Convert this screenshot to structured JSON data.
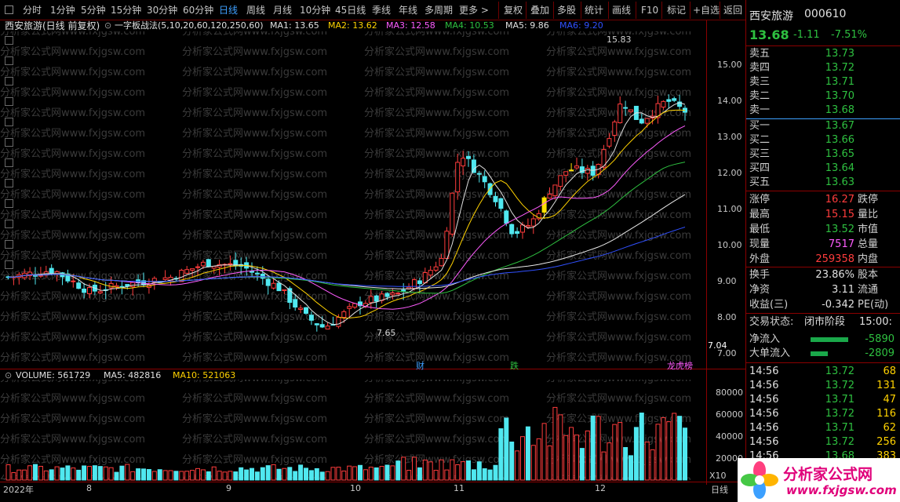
{
  "toolbar": {
    "periods": [
      "分时",
      "1分钟",
      "5分钟",
      "15分钟",
      "30分钟",
      "60分钟",
      "日线",
      "周线",
      "月线",
      "10分钟",
      "45日线",
      "季线",
      "年线",
      "多周期",
      "更多 >"
    ],
    "active_period": "日线",
    "tools": [
      "复权",
      "叠加",
      "多股",
      "统计",
      "画线",
      "F10",
      "标记",
      "+自选",
      "返回"
    ]
  },
  "chart_header": {
    "title": "西安旅游(日线 前复权)",
    "formula": "一字板战法(5,10,20,60,120,250,60)",
    "ma1": "MA1: 13.65",
    "ma2": "MA2: 13.62",
    "ma3": "MA3: 12.58",
    "ma4": "MA4: 10.53",
    "ma5": "MA5: 9.86",
    "ma6": "MA6: 9.20"
  },
  "volume_header": {
    "volume": "VOLUME: 561729",
    "ma5": "MA5: 482816",
    "ma10": "MA10: 521063"
  },
  "price_axis": [
    "15.00",
    "14.00",
    "13.00",
    "12.00",
    "11.00",
    "10.00",
    "9.00",
    "8.00",
    "7.00"
  ],
  "price_axis_marker": "7.04",
  "volume_axis": [
    "80000",
    "60000",
    "40000",
    "20000"
  ],
  "volume_unit": "X10",
  "x_axis": [
    "2022年",
    "8",
    "9",
    "10",
    "11",
    "12",
    "日线"
  ],
  "annotations": {
    "high": "15.83",
    "low": "7.65",
    "event_cai": "财",
    "event_die": "跌",
    "event_bang": "龙虎榜"
  },
  "stock": {
    "name": "西安旅游",
    "code": "000610",
    "price": "13.68",
    "change": "-1.11",
    "change_pct": "-7.51%"
  },
  "order_book": {
    "asks": [
      {
        "label": "卖五",
        "price": "13.73"
      },
      {
        "label": "卖四",
        "price": "13.72"
      },
      {
        "label": "卖三",
        "price": "13.71"
      },
      {
        "label": "卖二",
        "price": "13.70"
      },
      {
        "label": "卖一",
        "price": "13.68"
      }
    ],
    "bids": [
      {
        "label": "买一",
        "price": "13.67"
      },
      {
        "label": "买二",
        "price": "13.66"
      },
      {
        "label": "买三",
        "price": "13.65"
      },
      {
        "label": "买四",
        "price": "13.64"
      },
      {
        "label": "买五",
        "price": "13.63"
      }
    ]
  },
  "stats": [
    {
      "l1": "涨停",
      "v1": "16.27",
      "c1": "r",
      "l2": "跌停"
    },
    {
      "l1": "最高",
      "v1": "15.15",
      "c1": "r",
      "l2": "量比"
    },
    {
      "l1": "最低",
      "v1": "13.52",
      "c1": "g",
      "l2": "市值"
    },
    {
      "l1": "现量",
      "v1": "7517",
      "c1": "m",
      "l2": "总量"
    },
    {
      "l1": "外盘",
      "v1": "259358",
      "c1": "r",
      "l2": "内盘"
    }
  ],
  "stats2": [
    {
      "l1": "换手",
      "v1": "23.86%",
      "l2": "股本"
    },
    {
      "l1": "净资",
      "v1": "3.11",
      "l2": "流通"
    },
    {
      "l1": "收益(三)",
      "v1": "-0.342",
      "l2": "PE(动)"
    }
  ],
  "trade_status": {
    "label": "交易状态:",
    "value": "闭市阶段",
    "time": "15:00:"
  },
  "flows": [
    {
      "label": "净流入",
      "value": "-5890"
    },
    {
      "label": "大单流入",
      "value": "-2809"
    }
  ],
  "ticks": [
    {
      "time": "14:56",
      "price": "13.72",
      "vol": "68"
    },
    {
      "time": "14:56",
      "price": "13.72",
      "vol": "131"
    },
    {
      "time": "14:56",
      "price": "13.71",
      "vol": "47"
    },
    {
      "time": "14:56",
      "price": "13.72",
      "vol": "116"
    },
    {
      "time": "14:56",
      "price": "13.71",
      "vol": "62"
    },
    {
      "time": "14:56",
      "price": "13.72",
      "vol": "256"
    },
    {
      "time": "14:56",
      "price": "13.68",
      "vol": "383"
    }
  ],
  "watermark": "分析家公式网www.fxjgsw.com",
  "logo": {
    "cn": "分析家公式网",
    "url": "www.fxjgsw.com"
  },
  "colors": {
    "up": "#ff3c3c",
    "down": "#2ec040",
    "accent": "#3ea0ff",
    "frame": "#8b0000",
    "board": "#ffe000"
  }
}
